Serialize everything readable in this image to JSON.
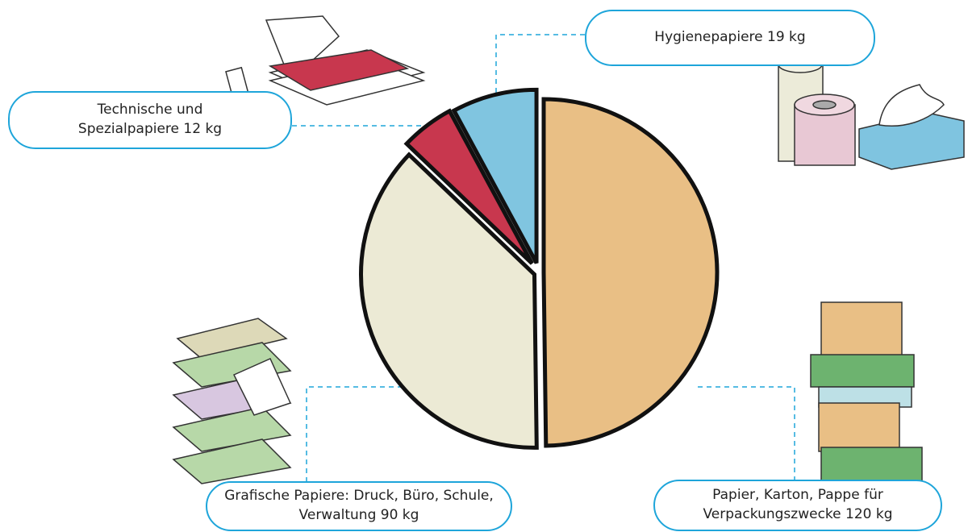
{
  "chart_data": {
    "type": "pie",
    "categories": [
      "Papier, Karton, Pappe für Verpackungszwecke",
      "Grafische Papiere: Druck, Büro, Schule, Verwaltung",
      "Technische und Spezialpapiere",
      "Hygienepapiere"
    ],
    "values": [
      120,
      90,
      12,
      19
    ],
    "value_labels": [
      "120 kg",
      "90 kg",
      "12 kg",
      "19 kg"
    ],
    "colors": [
      "#e9bf85",
      "#ecead5",
      "#c8374e",
      "#80c5e0"
    ]
  }
}
